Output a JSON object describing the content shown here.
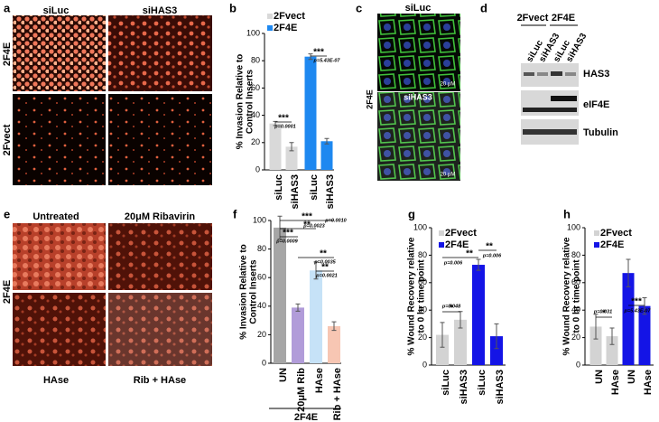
{
  "panels": {
    "a": {
      "letter": "a",
      "columns": [
        "siLuc",
        "siHAS3"
      ],
      "rows": [
        "2F4E",
        "2Fvect"
      ]
    },
    "c": {
      "letter": "c",
      "labels": [
        "siLuc",
        "siHAS3"
      ],
      "row": "2F4E",
      "scale": "20 μM"
    },
    "d": {
      "letter": "d",
      "groups": [
        "2Fvect",
        "2F4E"
      ],
      "lanes": [
        "siLuc",
        "siHAS3",
        "siLuc",
        "siHAS3"
      ],
      "blots": [
        "HAS3",
        "eIF4E",
        "Tubulin"
      ]
    },
    "e": {
      "letter": "e",
      "columns": [
        "Untreated",
        "20μM Ribavirin"
      ],
      "row": "2F4E",
      "bottom": [
        "HAse",
        "Rib + HAse"
      ]
    }
  },
  "chart_data": [
    {
      "type": "bar",
      "letter": "b",
      "ylabel": [
        "% Invasion Relative to",
        "Control Inserts"
      ],
      "categories": [
        "siLuc",
        "siHAS3",
        "siLuc",
        "siHAS3"
      ],
      "values": [
        34,
        17,
        83,
        21
      ],
      "errors": [
        1.5,
        3,
        2,
        2
      ],
      "colors": [
        "#d9d9d9",
        "#d9d9d9",
        "#1e88f0",
        "#1e88f0"
      ],
      "legend": [
        {
          "name": "2Fvect",
          "color": "#d9d9d9"
        },
        {
          "name": "2F4E",
          "color": "#1e88f0"
        }
      ],
      "ylim": [
        0,
        100
      ],
      "yticks": [
        0,
        20,
        40,
        60,
        80,
        100
      ],
      "annotations": [
        {
          "stars": "***",
          "p": "p=0.0001"
        },
        {
          "stars": "***",
          "p": "p=5.43E-07"
        }
      ]
    },
    {
      "type": "bar",
      "letter": "f",
      "ylabel": [
        "% Invasion Relative to",
        "Control Inserts"
      ],
      "xlabel": "2F4E",
      "categories": [
        "UN",
        "20μM Rib",
        "HAse",
        "Rib + HAse"
      ],
      "values": [
        95,
        39,
        65,
        26
      ],
      "errors": [
        8,
        2.5,
        6,
        3
      ],
      "colors": [
        "#a6a6a6",
        "#b19cd9",
        "#c6e2f7",
        "#f7c6b3"
      ],
      "ylim": [
        0,
        100
      ],
      "yticks": [
        0,
        20,
        40,
        60,
        80,
        100
      ],
      "annotations": [
        {
          "stars": "***",
          "p": "p=0.0010"
        },
        {
          "stars": "**",
          "p": "p=0.0023"
        },
        {
          "stars": "***",
          "p": "p=0.0009"
        },
        {
          "stars": "**",
          "p": "p=0.0035"
        },
        {
          "stars": "**",
          "p": "p=0.0021"
        }
      ]
    },
    {
      "type": "bar",
      "letter": "g",
      "ylabel": [
        "% Wound Recovery relative",
        "to 0 hr time point"
      ],
      "categories": [
        "siLuc",
        "siHAS3",
        "siLuc",
        "siHAS3"
      ],
      "values": [
        22,
        33,
        73,
        21
      ],
      "errors": [
        9,
        6,
        4,
        9
      ],
      "colors": [
        "#d3d3d3",
        "#d3d3d3",
        "#1414e6",
        "#1414e6"
      ],
      "legend": [
        {
          "name": "2Fvect",
          "color": "#d3d3d3"
        },
        {
          "name": "2F4E",
          "color": "#1414e6"
        }
      ],
      "ylim": [
        0,
        100
      ],
      "yticks": [
        0,
        20,
        40,
        60,
        80,
        100
      ],
      "annotations": [
        {
          "stars": "*",
          "p": "p=0.048"
        },
        {
          "stars": "**",
          "p": "p=0.006"
        },
        {
          "stars": "**",
          "p": "p=0.006"
        }
      ]
    },
    {
      "type": "bar",
      "letter": "h",
      "ylabel": [
        "% Wound Recovery relative",
        "to 0 hr time point"
      ],
      "categories": [
        "UN",
        "HAse",
        "UN",
        "HAse"
      ],
      "values": [
        28,
        21,
        67,
        43
      ],
      "errors": [
        9,
        6,
        10,
        6
      ],
      "colors": [
        "#d3d3d3",
        "#d3d3d3",
        "#1414e6",
        "#1414e6"
      ],
      "legend": [
        {
          "name": "2Fvect",
          "color": "#d3d3d3"
        },
        {
          "name": "2F4E",
          "color": "#1414e6"
        }
      ],
      "ylim": [
        0,
        100
      ],
      "yticks": [
        0,
        20,
        40,
        60,
        80,
        100
      ],
      "annotations": [
        {
          "stars": "*",
          "p": "p=0.031"
        },
        {
          "stars": "***",
          "p": "p=5.43E-07"
        }
      ]
    }
  ]
}
